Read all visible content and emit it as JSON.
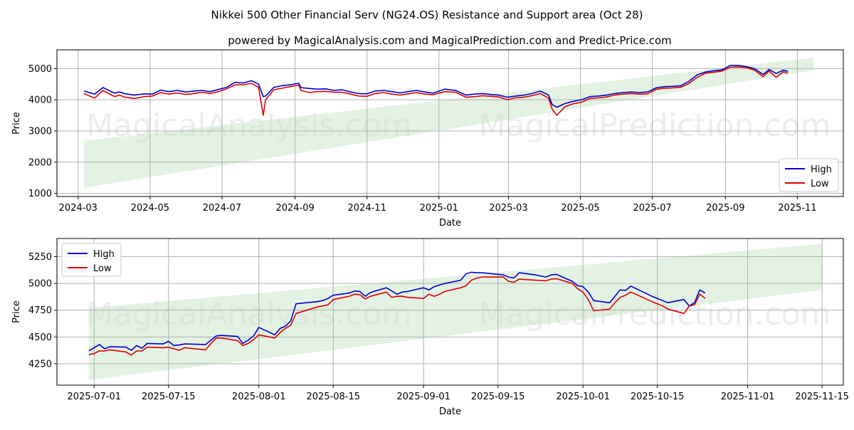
{
  "title": "Nikkei 500 Other Financial Serv (NG24.OS) Resistance and Support area (Oct 28)",
  "subtitle": "powered by MagicalAnalysis.com and MagicalPrediction.com and Predict-Price.com",
  "watermarks": [
    "MagicalAnalysis.com",
    "MagicalPrediction.com"
  ],
  "colors": {
    "high": "#0000cc",
    "low": "#dd0000",
    "band": "#c8e6c8",
    "grid": "#b0b0b0"
  },
  "chart_data": [
    {
      "type": "line",
      "xlabel": "Date",
      "ylabel": "Price",
      "grid": true,
      "legend_position": "lower-right",
      "x_ticks": [
        "2024-03",
        "2024-05",
        "2024-07",
        "2024-09",
        "2024-11",
        "2025-01",
        "2025-03",
        "2025-05",
        "2025-07",
        "2025-09",
        "2025-11"
      ],
      "y_ticks": [
        1000,
        2000,
        3000,
        4000,
        5000
      ],
      "xlim": [
        "2024-02-12",
        "2025-12-10"
      ],
      "ylim": [
        900,
        5600
      ],
      "band": {
        "x": [
          "2024-03-06",
          "2025-11-15"
        ],
        "upper": [
          2680,
          5350
        ],
        "lower": [
          1180,
          4950
        ]
      },
      "series": [
        {
          "name": "High",
          "x": [
            "2024-03-06",
            "2024-03-15",
            "2024-03-22",
            "2024-04-01",
            "2024-04-05",
            "2024-04-10",
            "2024-04-18",
            "2024-04-26",
            "2024-05-03",
            "2024-05-10",
            "2024-05-17",
            "2024-05-24",
            "2024-05-31",
            "2024-06-07",
            "2024-06-14",
            "2024-06-21",
            "2024-06-28",
            "2024-07-05",
            "2024-07-12",
            "2024-07-19",
            "2024-07-26",
            "2024-08-01",
            "2024-08-05",
            "2024-08-07",
            "2024-08-14",
            "2024-08-21",
            "2024-08-28",
            "2024-09-04",
            "2024-09-06",
            "2024-09-13",
            "2024-09-20",
            "2024-09-27",
            "2024-10-04",
            "2024-10-11",
            "2024-10-18",
            "2024-10-25",
            "2024-11-01",
            "2024-11-08",
            "2024-11-15",
            "2024-11-22",
            "2024-11-29",
            "2024-12-06",
            "2024-12-13",
            "2024-12-20",
            "2024-12-27",
            "2025-01-06",
            "2025-01-15",
            "2025-01-24",
            "2025-01-31",
            "2025-02-07",
            "2025-02-14",
            "2025-02-21",
            "2025-02-28",
            "2025-03-07",
            "2025-03-14",
            "2025-03-21",
            "2025-03-28",
            "2025-04-04",
            "2025-04-07",
            "2025-04-11",
            "2025-04-18",
            "2025-04-25",
            "2025-05-02",
            "2025-05-09",
            "2025-05-16",
            "2025-05-23",
            "2025-05-30",
            "2025-06-06",
            "2025-06-13",
            "2025-06-20",
            "2025-06-27",
            "2025-07-04",
            "2025-07-11",
            "2025-07-18",
            "2025-07-25",
            "2025-08-01",
            "2025-08-08",
            "2025-08-15",
            "2025-08-22",
            "2025-08-29",
            "2025-09-05",
            "2025-09-12",
            "2025-09-19",
            "2025-09-26",
            "2025-10-03",
            "2025-10-08",
            "2025-10-14",
            "2025-10-20",
            "2025-10-24"
          ],
          "values": [
            4280,
            4180,
            4390,
            4210,
            4250,
            4190,
            4150,
            4190,
            4180,
            4310,
            4260,
            4300,
            4250,
            4280,
            4300,
            4260,
            4330,
            4400,
            4560,
            4540,
            4610,
            4500,
            4100,
            4120,
            4400,
            4450,
            4480,
            4530,
            4390,
            4360,
            4340,
            4350,
            4300,
            4320,
            4250,
            4200,
            4190,
            4280,
            4300,
            4260,
            4220,
            4260,
            4300,
            4250,
            4210,
            4340,
            4300,
            4150,
            4180,
            4200,
            4170,
            4150,
            4080,
            4120,
            4150,
            4200,
            4280,
            4150,
            3850,
            3760,
            3880,
            3950,
            4000,
            4100,
            4120,
            4150,
            4200,
            4230,
            4250,
            4230,
            4250,
            4380,
            4420,
            4430,
            4450,
            4590,
            4800,
            4890,
            4930,
            4960,
            5100,
            5100,
            5060,
            4990,
            4810,
            4970,
            4840,
            4950,
            4910
          ]
        },
        {
          "name": "Low",
          "x": [
            "2024-03-06",
            "2024-03-15",
            "2024-03-22",
            "2024-04-01",
            "2024-04-05",
            "2024-04-10",
            "2024-04-18",
            "2024-04-26",
            "2024-05-03",
            "2024-05-10",
            "2024-05-17",
            "2024-05-24",
            "2024-05-31",
            "2024-06-07",
            "2024-06-14",
            "2024-06-21",
            "2024-06-28",
            "2024-07-05",
            "2024-07-12",
            "2024-07-19",
            "2024-07-26",
            "2024-08-01",
            "2024-08-05",
            "2024-08-07",
            "2024-08-14",
            "2024-08-21",
            "2024-08-28",
            "2024-09-04",
            "2024-09-06",
            "2024-09-13",
            "2024-09-20",
            "2024-09-27",
            "2024-10-04",
            "2024-10-11",
            "2024-10-18",
            "2024-10-25",
            "2024-11-01",
            "2024-11-08",
            "2024-11-15",
            "2024-11-22",
            "2024-11-29",
            "2024-12-06",
            "2024-12-13",
            "2024-12-20",
            "2024-12-27",
            "2025-01-06",
            "2025-01-15",
            "2025-01-24",
            "2025-01-31",
            "2025-02-07",
            "2025-02-14",
            "2025-02-21",
            "2025-02-28",
            "2025-03-07",
            "2025-03-14",
            "2025-03-21",
            "2025-03-28",
            "2025-04-04",
            "2025-04-07",
            "2025-04-11",
            "2025-04-18",
            "2025-04-25",
            "2025-05-02",
            "2025-05-09",
            "2025-05-16",
            "2025-05-23",
            "2025-05-30",
            "2025-06-06",
            "2025-06-13",
            "2025-06-20",
            "2025-06-27",
            "2025-07-04",
            "2025-07-11",
            "2025-07-18",
            "2025-07-25",
            "2025-08-01",
            "2025-08-08",
            "2025-08-15",
            "2025-08-22",
            "2025-08-29",
            "2025-09-05",
            "2025-09-12",
            "2025-09-19",
            "2025-09-26",
            "2025-10-03",
            "2025-10-08",
            "2025-10-14",
            "2025-10-20",
            "2025-10-24"
          ],
          "values": [
            4200,
            4050,
            4300,
            4100,
            4150,
            4080,
            4040,
            4100,
            4120,
            4230,
            4180,
            4220,
            4170,
            4200,
            4240,
            4200,
            4260,
            4350,
            4480,
            4480,
            4530,
            4400,
            3500,
            4000,
            4320,
            4370,
            4420,
            4470,
            4300,
            4230,
            4260,
            4270,
            4240,
            4240,
            4180,
            4120,
            4110,
            4200,
            4230,
            4180,
            4150,
            4190,
            4230,
            4180,
            4160,
            4260,
            4240,
            4080,
            4100,
            4130,
            4110,
            4090,
            4000,
            4060,
            4080,
            4130,
            4200,
            4050,
            3700,
            3500,
            3780,
            3870,
            3920,
            4040,
            4060,
            4090,
            4150,
            4180,
            4200,
            4180,
            4190,
            4330,
            4370,
            4380,
            4400,
            4520,
            4720,
            4850,
            4880,
            4920,
            5040,
            5050,
            5030,
            4940,
            4740,
            4920,
            4720,
            4900,
            4850
          ]
        }
      ]
    },
    {
      "type": "line",
      "xlabel": "Date",
      "ylabel": "Price",
      "grid": true,
      "legend_position": "upper-left",
      "x_ticks": [
        "2025-07-01",
        "2025-07-15",
        "2025-08-01",
        "2025-08-15",
        "2025-09-01",
        "2025-09-15",
        "2025-10-01",
        "2025-10-15",
        "2025-11-01",
        "2025-11-15"
      ],
      "y_ticks": [
        4250,
        4500,
        4750,
        5000,
        5250
      ],
      "xlim": [
        "2025-06-24",
        "2025-11-19"
      ],
      "ylim": [
        4050,
        5420
      ],
      "band": {
        "x": [
          "2025-06-30",
          "2025-11-15"
        ],
        "upper": [
          4770,
          5370
        ],
        "lower": [
          4100,
          4940
        ]
      },
      "series": [
        {
          "name": "High",
          "x": [
            "2025-06-30",
            "2025-07-01",
            "2025-07-02",
            "2025-07-03",
            "2025-07-04",
            "2025-07-07",
            "2025-07-08",
            "2025-07-09",
            "2025-07-10",
            "2025-07-11",
            "2025-07-14",
            "2025-07-15",
            "2025-07-16",
            "2025-07-17",
            "2025-07-18",
            "2025-07-22",
            "2025-07-23",
            "2025-07-24",
            "2025-07-25",
            "2025-07-28",
            "2025-07-29",
            "2025-07-30",
            "2025-07-31",
            "2025-08-01",
            "2025-08-04",
            "2025-08-05",
            "2025-08-06",
            "2025-08-07",
            "2025-08-08",
            "2025-08-12",
            "2025-08-13",
            "2025-08-14",
            "2025-08-15",
            "2025-08-18",
            "2025-08-19",
            "2025-08-20",
            "2025-08-21",
            "2025-08-22",
            "2025-08-25",
            "2025-08-26",
            "2025-08-27",
            "2025-08-28",
            "2025-08-29",
            "2025-09-01",
            "2025-09-02",
            "2025-09-03",
            "2025-09-04",
            "2025-09-05",
            "2025-09-08",
            "2025-09-09",
            "2025-09-10",
            "2025-09-11",
            "2025-09-12",
            "2025-09-16",
            "2025-09-17",
            "2025-09-18",
            "2025-09-19",
            "2025-09-22",
            "2025-09-24",
            "2025-09-25",
            "2025-09-26",
            "2025-09-29",
            "2025-09-30",
            "2025-10-01",
            "2025-10-02",
            "2025-10-03",
            "2025-10-06",
            "2025-10-07",
            "2025-10-08",
            "2025-10-09",
            "2025-10-10",
            "2025-10-14",
            "2025-10-15",
            "2025-10-16",
            "2025-10-17",
            "2025-10-20",
            "2025-10-21",
            "2025-10-22",
            "2025-10-23",
            "2025-10-24"
          ],
          "values": [
            4370,
            4400,
            4430,
            4390,
            4410,
            4405,
            4375,
            4420,
            4395,
            4440,
            4435,
            4460,
            4420,
            4425,
            4435,
            4430,
            4470,
            4510,
            4515,
            4505,
            4440,
            4470,
            4510,
            4590,
            4520,
            4580,
            4600,
            4650,
            4810,
            4830,
            4840,
            4860,
            4890,
            4910,
            4930,
            4925,
            4880,
            4915,
            4960,
            4930,
            4900,
            4920,
            4925,
            4960,
            4940,
            4970,
            4985,
            5000,
            5030,
            5090,
            5105,
            5100,
            5100,
            5080,
            5060,
            5050,
            5100,
            5080,
            5060,
            5080,
            5085,
            5020,
            4980,
            4970,
            4920,
            4840,
            4820,
            4880,
            4940,
            4935,
            4975,
            4880,
            4860,
            4840,
            4820,
            4850,
            4790,
            4820,
            4940,
            4910
          ]
        },
        {
          "name": "Low",
          "x": [
            "2025-06-30",
            "2025-07-01",
            "2025-07-02",
            "2025-07-03",
            "2025-07-04",
            "2025-07-07",
            "2025-07-08",
            "2025-07-09",
            "2025-07-10",
            "2025-07-11",
            "2025-07-14",
            "2025-07-15",
            "2025-07-16",
            "2025-07-17",
            "2025-07-18",
            "2025-07-22",
            "2025-07-23",
            "2025-07-24",
            "2025-07-25",
            "2025-07-28",
            "2025-07-29",
            "2025-07-30",
            "2025-07-31",
            "2025-08-01",
            "2025-08-04",
            "2025-08-05",
            "2025-08-06",
            "2025-08-07",
            "2025-08-08",
            "2025-08-12",
            "2025-08-13",
            "2025-08-14",
            "2025-08-15",
            "2025-08-18",
            "2025-08-19",
            "2025-08-20",
            "2025-08-21",
            "2025-08-22",
            "2025-08-25",
            "2025-08-26",
            "2025-08-27",
            "2025-08-28",
            "2025-08-29",
            "2025-09-01",
            "2025-09-02",
            "2025-09-03",
            "2025-09-04",
            "2025-09-05",
            "2025-09-08",
            "2025-09-09",
            "2025-09-10",
            "2025-09-11",
            "2025-09-12",
            "2025-09-16",
            "2025-09-17",
            "2025-09-18",
            "2025-09-19",
            "2025-09-22",
            "2025-09-24",
            "2025-09-25",
            "2025-09-26",
            "2025-09-29",
            "2025-09-30",
            "2025-10-01",
            "2025-10-02",
            "2025-10-03",
            "2025-10-06",
            "2025-10-07",
            "2025-10-08",
            "2025-10-09",
            "2025-10-10",
            "2025-10-14",
            "2025-10-15",
            "2025-10-16",
            "2025-10-17",
            "2025-10-20",
            "2025-10-21",
            "2025-10-22",
            "2025-10-23",
            "2025-10-24"
          ],
          "values": [
            4335,
            4345,
            4370,
            4370,
            4380,
            4360,
            4330,
            4370,
            4370,
            4405,
            4400,
            4405,
            4390,
            4375,
            4400,
            4380,
            4440,
            4490,
            4490,
            4465,
            4420,
            4440,
            4475,
            4520,
            4490,
            4540,
            4580,
            4610,
            4720,
            4780,
            4790,
            4800,
            4850,
            4880,
            4900,
            4895,
            4855,
            4880,
            4920,
            4870,
            4880,
            4880,
            4870,
            4860,
            4900,
            4880,
            4900,
            4925,
            4960,
            4980,
            5030,
            5050,
            5060,
            5060,
            5020,
            5010,
            5040,
            5030,
            5025,
            5040,
            5045,
            5000,
            4950,
            4920,
            4850,
            4745,
            4760,
            4820,
            4870,
            4890,
            4920,
            4830,
            4810,
            4790,
            4760,
            4720,
            4790,
            4800,
            4900,
            4860
          ]
        }
      ]
    }
  ]
}
